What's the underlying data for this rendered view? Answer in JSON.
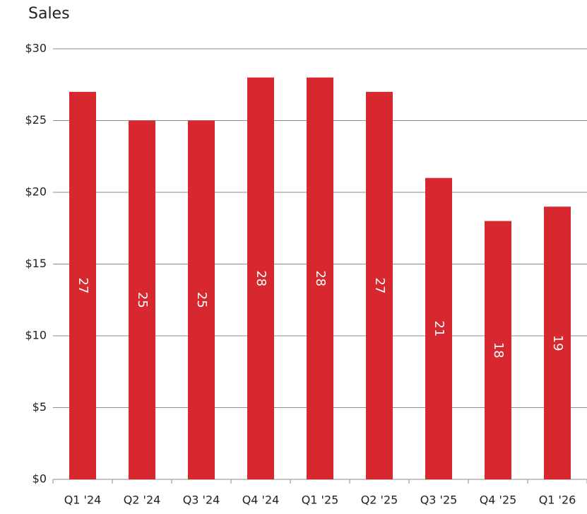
{
  "chart_data": {
    "type": "bar",
    "title": "Sales",
    "categories": [
      "Q1 '24",
      "Q2 '24",
      "Q3 '24",
      "Q4 '24",
      "Q1 '25",
      "Q2 '25",
      "Q3 '25",
      "Q4 '25",
      "Q1 '26"
    ],
    "values": [
      27,
      25,
      25,
      28,
      28,
      27,
      21,
      18,
      19
    ],
    "color": "#d7282f",
    "ylim": [
      0,
      30
    ],
    "yticks": [
      {
        "value": 0,
        "label": "$0"
      },
      {
        "value": 5,
        "label": "$5"
      },
      {
        "value": 10,
        "label": "$10"
      },
      {
        "value": 15,
        "label": "$15"
      },
      {
        "value": 20,
        "label": "$20"
      },
      {
        "value": 25,
        "label": "$25"
      },
      {
        "value": 30,
        "label": "$30"
      }
    ],
    "grid": true
  }
}
